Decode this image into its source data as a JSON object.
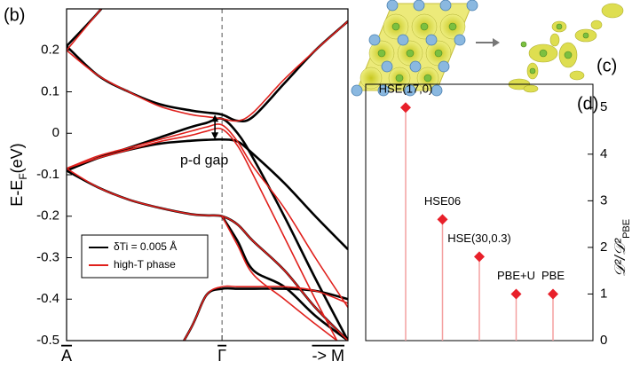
{
  "chart_data": [
    {
      "type": "line",
      "panel": "(b)",
      "ylabel": [
        "E-E",
        "F",
        "(eV)"
      ],
      "x": [
        0,
        0.2,
        0.4,
        0.6,
        0.8,
        0.9,
        1,
        1.1,
        1.2,
        1.4,
        1.6,
        1.81
      ],
      "xlim": [
        0,
        1.81
      ],
      "xticks": [
        {
          "value": 0,
          "label": "A"
        },
        {
          "value": 1,
          "label": "Γ"
        },
        {
          "value": 1.81,
          "label": "-> M"
        }
      ],
      "ylim": [
        -0.5,
        0.3
      ],
      "yticks": [
        -0.5,
        -0.4,
        -0.3,
        -0.2,
        -0.1,
        0,
        0.1,
        0.2
      ],
      "annotation": "p-d gap",
      "legend": "lower left",
      "series": [
        {
          "name": "δTi = 0.005 Å",
          "color": "#000000",
          "values": [
            [
              0.21,
              0.29,
              0.38,
              0.47,
              0.56,
              0.6,
              0.62,
              0.6,
              0.56,
              0.48,
              0.42,
              0.36
            ],
            [
              0.21,
              0.14,
              0.1,
              0.07,
              0.055,
              0.05,
              0.045,
              0.03,
              0.04,
              0.12,
              0.2,
              0.27
            ],
            [
              -0.09,
              -0.06,
              -0.04,
              -0.025,
              -0.018,
              -0.016,
              -0.015,
              -0.02,
              -0.05,
              -0.12,
              -0.2,
              -0.28
            ],
            [
              -0.09,
              -0.13,
              -0.16,
              -0.18,
              -0.195,
              -0.198,
              -0.2,
              -0.22,
              -0.26,
              -0.33,
              -0.42,
              -0.5
            ],
            [
              -0.09,
              -0.06,
              -0.035,
              -0.01,
              0.015,
              0.025,
              0.035,
              0,
              -0.06,
              -0.2,
              -0.35,
              -0.5
            ],
            [
              null,
              null,
              null,
              -0.6,
              -0.47,
              -0.39,
              -0.375,
              -0.375,
              -0.375,
              -0.375,
              -0.38,
              -0.4
            ],
            [
              null,
              null,
              null,
              null,
              null,
              null,
              -0.2,
              -0.26,
              -0.33,
              -0.37,
              -0.44,
              -0.5
            ]
          ]
        },
        {
          "name": "high-T phase",
          "color": "#e0201c",
          "values": [
            [
              0.2,
              0.29,
              0.38,
              0.47,
              0.56,
              0.6,
              0.62,
              0.6,
              0.56,
              0.48,
              0.42,
              0.36
            ],
            [
              0.2,
              0.14,
              0.1,
              0.065,
              0.045,
              0.04,
              0.035,
              0.03,
              0.05,
              0.13,
              0.2,
              0.27
            ],
            [
              -0.085,
              -0.055,
              -0.035,
              -0.015,
              0.005,
              0.015,
              0.02,
              -0.02,
              -0.08,
              -0.18,
              -0.3,
              -0.42
            ],
            [
              -0.085,
              -0.13,
              -0.16,
              -0.18,
              -0.195,
              -0.198,
              -0.2,
              -0.22,
              -0.26,
              -0.33,
              -0.42,
              -0.5
            ],
            [
              -0.085,
              -0.06,
              -0.04,
              -0.02,
              -0.005,
              0.005,
              0.01,
              -0.03,
              -0.1,
              -0.25,
              -0.4,
              -0.55
            ],
            [
              null,
              null,
              null,
              -0.6,
              -0.47,
              -0.39,
              -0.37,
              -0.37,
              -0.37,
              -0.37,
              -0.38,
              -0.41
            ],
            [
              null,
              null,
              null,
              null,
              null,
              null,
              -0.2,
              -0.27,
              -0.34,
              -0.4,
              -0.46,
              -0.52
            ]
          ]
        }
      ]
    },
    {
      "type": "stem",
      "panel": "(d)",
      "ylabel": [
        "𝒟²/𝒟²",
        "PBE"
      ],
      "categories": [
        "HSE(17,0)",
        "HSE06",
        "HSE(30,0.3)",
        "PBE+U",
        "PBE"
      ],
      "values": [
        5,
        2.6,
        1.8,
        1,
        1
      ],
      "color": "#e8202a",
      "stem_color": "#f4a0a0",
      "ylim": [
        0,
        5.5
      ],
      "yticks": [
        0,
        1,
        2,
        3,
        4,
        5
      ],
      "yaxis": "right"
    }
  ],
  "structure_panel": {
    "label": "(c)"
  }
}
